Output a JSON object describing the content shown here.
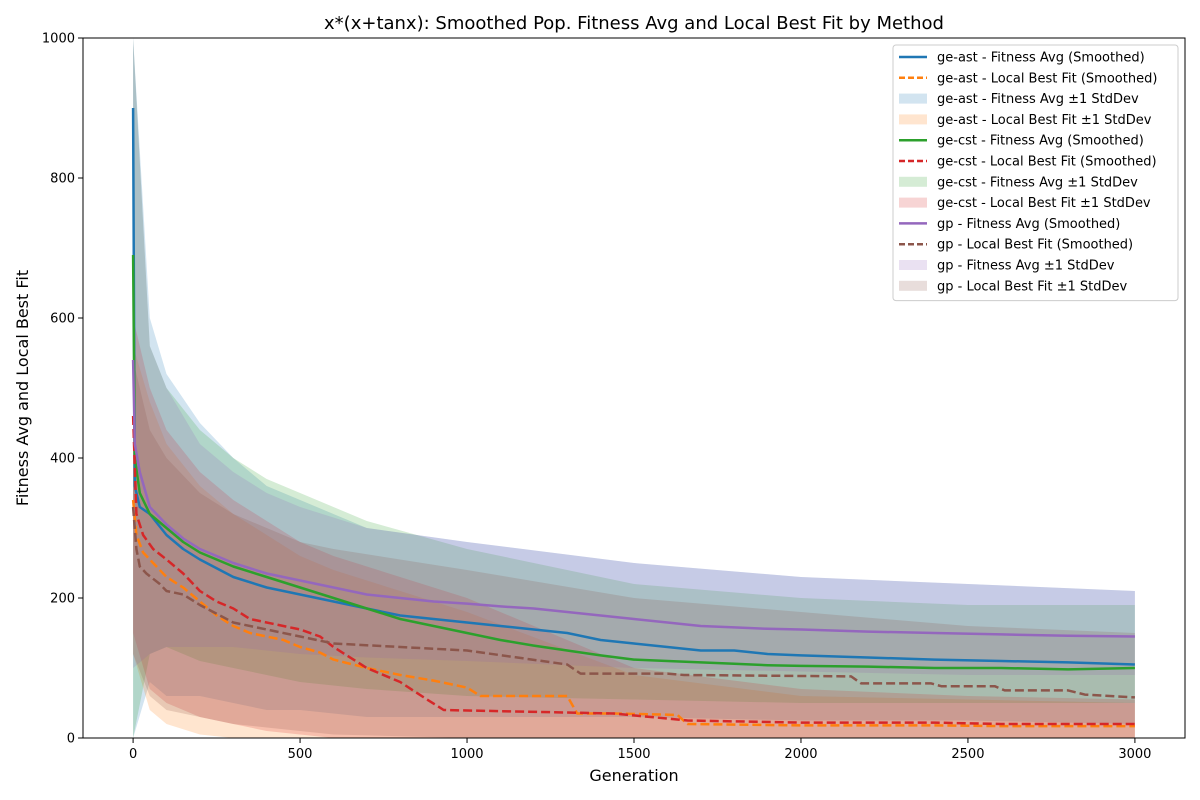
{
  "chart_data": {
    "type": "line",
    "title": "x*(x+tanx): Smoothed Pop. Fitness Avg and Local Best Fit by Method",
    "xlabel": "Generation",
    "ylabel": "Fitness Avg and Local Best Fit",
    "xlim": [
      -150,
      3150
    ],
    "ylim": [
      0,
      1000
    ],
    "xticks": [
      0,
      500,
      1000,
      1500,
      2000,
      2500,
      3000
    ],
    "yticks": [
      0,
      200,
      400,
      600,
      800,
      1000
    ],
    "grid": false,
    "legend_position": "top-right",
    "series": [
      {
        "name": "ge-ast - Fitness Avg (Smoothed)",
        "kind": "line",
        "style": "solid",
        "color": "#1f77b4",
        "x": [
          0,
          5,
          20,
          50,
          100,
          150,
          200,
          300,
          400,
          500,
          600,
          700,
          800,
          900,
          1000,
          1100,
          1200,
          1300,
          1400,
          1500,
          1600,
          1700,
          1800,
          1900,
          2000,
          2200,
          2400,
          2600,
          2800,
          3000
        ],
        "y": [
          900,
          360,
          330,
          320,
          290,
          270,
          255,
          230,
          215,
          205,
          195,
          185,
          175,
          170,
          165,
          160,
          155,
          150,
          140,
          135,
          130,
          125,
          125,
          120,
          118,
          115,
          112,
          110,
          108,
          105
        ]
      },
      {
        "name": "ge-ast - Local Best Fit (Smoothed)",
        "kind": "line",
        "style": "dashed",
        "color": "#ff7f0e",
        "x": [
          0,
          10,
          30,
          60,
          100,
          150,
          200,
          250,
          300,
          350,
          450,
          500,
          560,
          600,
          700,
          800,
          900,
          1000,
          1040,
          1300,
          1330,
          1440,
          1630,
          1660,
          2000,
          2400,
          2600,
          3000
        ],
        "y": [
          340,
          290,
          265,
          250,
          230,
          215,
          195,
          175,
          160,
          150,
          140,
          130,
          122,
          112,
          100,
          90,
          82,
          72,
          60,
          60,
          35,
          35,
          33,
          20,
          18,
          18,
          17,
          17
        ]
      },
      {
        "name": "ge-ast - Fitness Avg ±1 StdDev",
        "kind": "band",
        "color": "#1f77b4",
        "x": [
          0,
          50,
          100,
          200,
          300,
          400,
          500,
          700,
          1000,
          1500,
          2000,
          2500,
          3000
        ],
        "lower": [
          0,
          80,
          60,
          60,
          50,
          40,
          40,
          30,
          30,
          30,
          25,
          25,
          20
        ],
        "upper": [
          1000,
          600,
          520,
          450,
          400,
          360,
          340,
          300,
          280,
          250,
          230,
          220,
          210
        ]
      },
      {
        "name": "ge-ast - Local Best Fit ±1 StdDev",
        "kind": "band",
        "color": "#ff7f0e",
        "x": [
          0,
          50,
          100,
          200,
          300,
          400,
          500,
          600,
          1000,
          1500,
          2000,
          2500,
          3000
        ],
        "lower": [
          120,
          40,
          20,
          5,
          0,
          0,
          0,
          0,
          0,
          0,
          0,
          0,
          0
        ],
        "upper": [
          560,
          480,
          420,
          360,
          320,
          290,
          260,
          240,
          180,
          90,
          60,
          55,
          50
        ]
      },
      {
        "name": "ge-cst - Fitness Avg (Smoothed)",
        "kind": "line",
        "style": "solid",
        "color": "#2ca02c",
        "x": [
          0,
          5,
          20,
          50,
          100,
          150,
          200,
          300,
          400,
          500,
          600,
          700,
          800,
          900,
          1000,
          1100,
          1200,
          1300,
          1400,
          1500,
          1600,
          1700,
          1800,
          1900,
          2000,
          2200,
          2400,
          2600,
          2800,
          3000
        ],
        "y": [
          690,
          400,
          350,
          320,
          300,
          280,
          265,
          245,
          230,
          215,
          200,
          185,
          170,
          160,
          150,
          140,
          132,
          125,
          118,
          112,
          110,
          108,
          106,
          104,
          103,
          102,
          100,
          100,
          98,
          100
        ]
      },
      {
        "name": "ge-cst - Local Best Fit (Smoothed)",
        "kind": "line",
        "style": "dashed",
        "color": "#d62728",
        "x": [
          0,
          10,
          30,
          60,
          100,
          150,
          200,
          250,
          300,
          350,
          450,
          500,
          560,
          600,
          700,
          800,
          880,
          930,
          1440,
          1660,
          2000,
          2400,
          2600,
          3000
        ],
        "y": [
          460,
          320,
          290,
          270,
          255,
          235,
          210,
          195,
          185,
          170,
          160,
          155,
          145,
          130,
          100,
          80,
          55,
          40,
          35,
          25,
          22,
          22,
          20,
          20
        ]
      },
      {
        "name": "ge-cst - Fitness Avg ±1 StdDev",
        "kind": "band",
        "color": "#2ca02c",
        "x": [
          0,
          50,
          100,
          200,
          300,
          400,
          500,
          700,
          1000,
          1500,
          2000,
          2500,
          3000
        ],
        "lower": [
          0,
          120,
          130,
          110,
          100,
          90,
          80,
          70,
          60,
          55,
          50,
          50,
          50
        ],
        "upper": [
          1000,
          560,
          500,
          440,
          400,
          370,
          350,
          310,
          270,
          220,
          200,
          190,
          190
        ]
      },
      {
        "name": "ge-cst - Local Best Fit ±1 StdDev",
        "kind": "band",
        "color": "#d62728",
        "x": [
          0,
          50,
          100,
          200,
          300,
          400,
          500,
          600,
          1000,
          1500,
          2000,
          2500,
          3000
        ],
        "lower": [
          150,
          70,
          50,
          30,
          20,
          10,
          5,
          0,
          0,
          0,
          0,
          0,
          0
        ],
        "upper": [
          600,
          500,
          440,
          380,
          340,
          310,
          280,
          260,
          200,
          100,
          70,
          60,
          55
        ]
      },
      {
        "name": "gp - Fitness Avg (Smoothed)",
        "kind": "line",
        "style": "solid",
        "color": "#9467bd",
        "x": [
          0,
          5,
          20,
          50,
          100,
          150,
          200,
          300,
          400,
          500,
          600,
          700,
          800,
          900,
          1000,
          1100,
          1200,
          1300,
          1400,
          1500,
          1600,
          1700,
          1800,
          1900,
          2000,
          2200,
          2400,
          2600,
          2800,
          3000
        ],
        "y": [
          540,
          420,
          380,
          330,
          305,
          285,
          270,
          250,
          235,
          225,
          215,
          205,
          200,
          195,
          192,
          188,
          185,
          180,
          175,
          170,
          165,
          160,
          158,
          156,
          155,
          152,
          150,
          148,
          146,
          145
        ]
      },
      {
        "name": "gp - Local Best Fit (Smoothed)",
        "kind": "line",
        "style": "dashed",
        "color": "#8c564b",
        "x": [
          0,
          10,
          20,
          40,
          80,
          100,
          150,
          200,
          300,
          400,
          500,
          600,
          1000,
          1300,
          1340,
          1600,
          1650,
          2150,
          2180,
          2390,
          2420,
          2580,
          2610,
          2800,
          2850,
          3000
        ],
        "y": [
          330,
          270,
          245,
          235,
          220,
          210,
          205,
          190,
          165,
          155,
          145,
          135,
          125,
          105,
          92,
          92,
          90,
          88,
          78,
          78,
          74,
          74,
          68,
          68,
          62,
          58
        ]
      },
      {
        "name": "gp - Fitness Avg ±1 StdDev",
        "kind": "band",
        "color": "#9467bd",
        "x": [
          0,
          50,
          100,
          200,
          300,
          400,
          500,
          700,
          1000,
          1500,
          2000,
          2500,
          3000
        ],
        "lower": [
          100,
          120,
          130,
          130,
          130,
          125,
          120,
          115,
          110,
          100,
          95,
          90,
          90
        ],
        "upper": [
          1000,
          560,
          500,
          420,
          380,
          350,
          330,
          300,
          280,
          250,
          230,
          220,
          210
        ]
      },
      {
        "name": "gp - Local Best Fit ±1 StdDev",
        "kind": "band",
        "color": "#8c564b",
        "x": [
          0,
          50,
          100,
          200,
          300,
          400,
          500,
          600,
          1000,
          1500,
          2000,
          2500,
          3000
        ],
        "lower": [
          120,
          60,
          40,
          30,
          20,
          15,
          10,
          5,
          0,
          0,
          0,
          0,
          0
        ],
        "upper": [
          540,
          440,
          400,
          350,
          320,
          300,
          280,
          270,
          240,
          200,
          180,
          160,
          150
        ]
      }
    ]
  }
}
